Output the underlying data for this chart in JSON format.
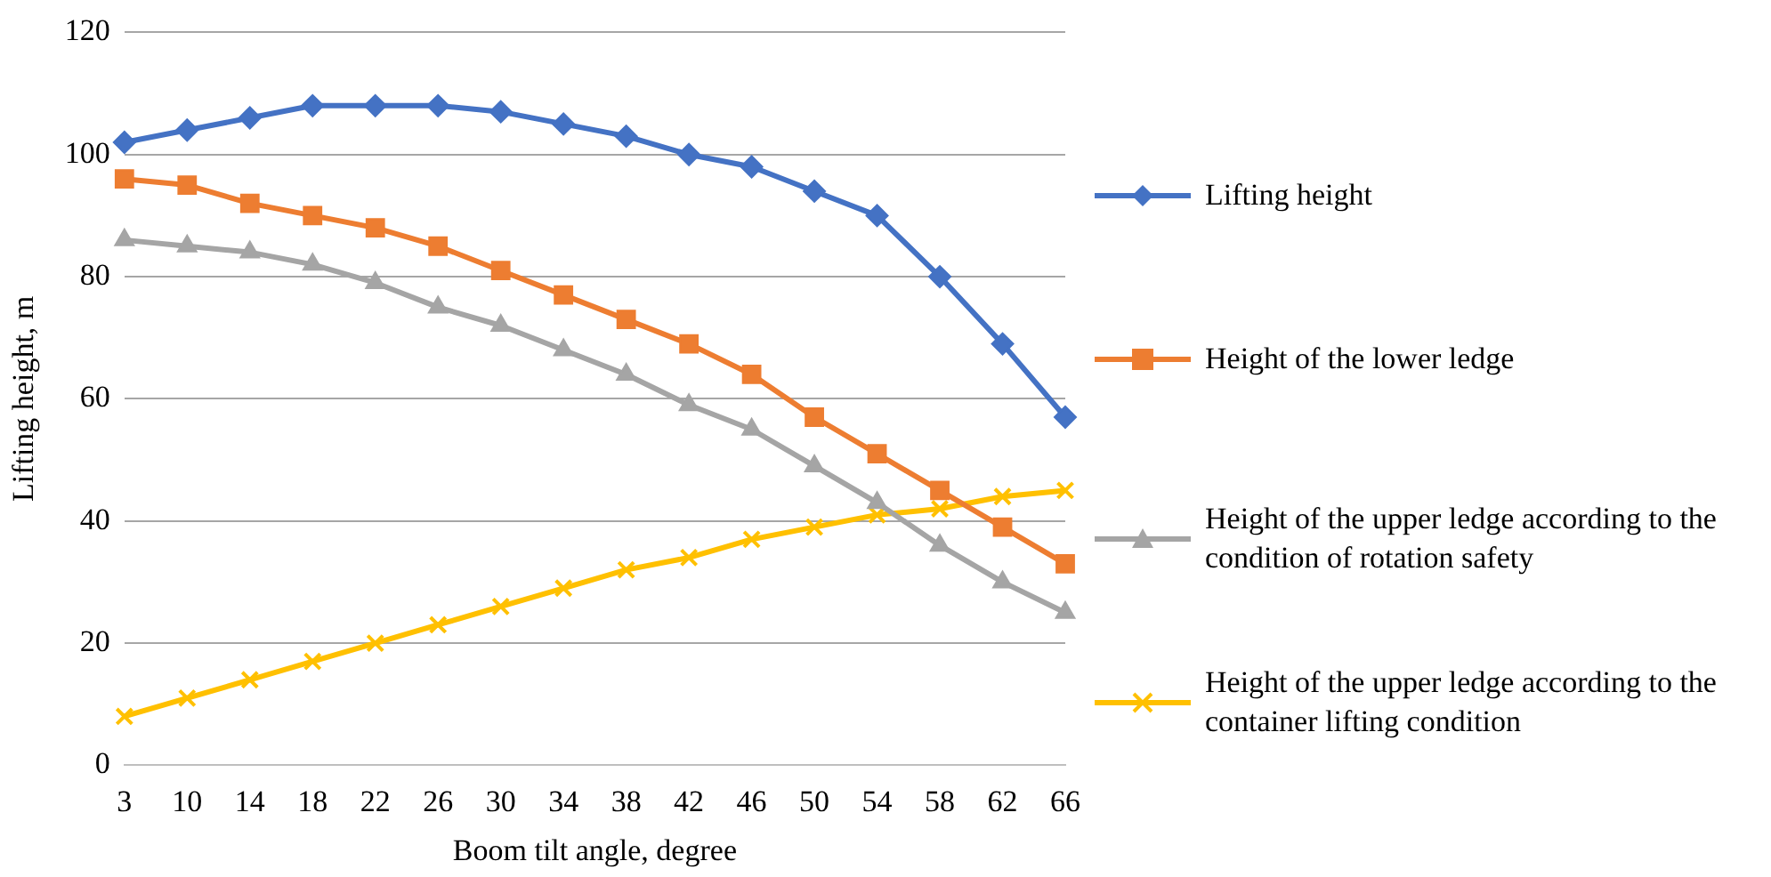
{
  "chart_data": {
    "type": "line",
    "xlabel": "Boom tilt angle, degree",
    "ylabel": "Lifting height, m",
    "categories": [
      "3",
      "10",
      "14",
      "18",
      "22",
      "26",
      "30",
      "34",
      "38",
      "42",
      "46",
      "50",
      "54",
      "58",
      "62",
      "66"
    ],
    "ylim": [
      0,
      120
    ],
    "yticks": [
      0,
      20,
      40,
      60,
      80,
      100,
      120
    ],
    "grid": "y",
    "legend": "right",
    "series": [
      {
        "name": "Lifting height",
        "color": "#4472c4",
        "marker": "diamond",
        "values": [
          102,
          104,
          106,
          108,
          108,
          108,
          107,
          105,
          103,
          100,
          98,
          94,
          90,
          80,
          69,
          57
        ]
      },
      {
        "name": "Height of the lower ledge",
        "color": "#ed7d31",
        "marker": "square",
        "values": [
          96,
          95,
          92,
          90,
          88,
          85,
          81,
          77,
          73,
          69,
          64,
          57,
          51,
          45,
          39,
          33
        ]
      },
      {
        "name": "Height of the upper ledge according to the condition of rotation safety",
        "color": "#a5a5a5",
        "marker": "triangle",
        "values": [
          86,
          85,
          84,
          82,
          79,
          75,
          72,
          68,
          64,
          59,
          55,
          49,
          43,
          36,
          30,
          25
        ]
      },
      {
        "name": "Height of the upper ledge according to the container lifting condition",
        "color": "#ffc000",
        "marker": "cross",
        "values": [
          8,
          11,
          14,
          17,
          20,
          23,
          26,
          29,
          32,
          34,
          37,
          39,
          41,
          42,
          44,
          45
        ]
      }
    ]
  }
}
